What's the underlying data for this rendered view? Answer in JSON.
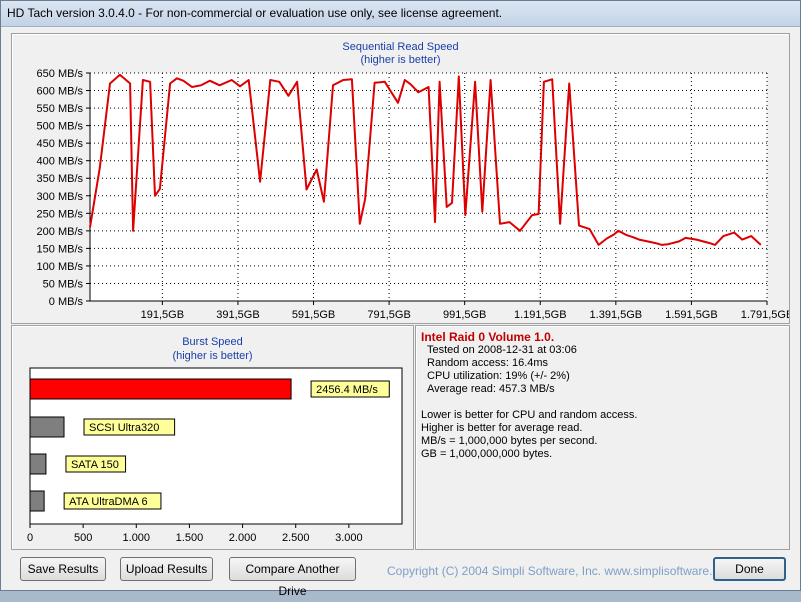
{
  "window": {
    "title": "HD Tach version 3.0.4.0  - For non-commercial or evaluation use only, see license agreement."
  },
  "sequential": {
    "title": "Sequential Read Speed",
    "subtitle": "(higher is better)"
  },
  "burst": {
    "title": "Burst Speed",
    "subtitle": "(higher is better)"
  },
  "info": {
    "heading": "Intel Raid 0 Volume 1.0.",
    "tested": "Tested on 2008-12-31 at 03:06",
    "random_access": "Random access: 16.4ms",
    "cpu": "CPU utilization: 19% (+/- 2%)",
    "avg_read": "Average read: 457.3 MB/s",
    "note1": "Lower is better for CPU and random access.",
    "note2": "Higher is better for average read.",
    "note3": "MB/s = 1,000,000 bytes per second.",
    "note4": "GB = 1,000,000,000 bytes."
  },
  "buttons": {
    "save": "Save Results",
    "upload": "Upload Results",
    "compare": "Compare Another Drive",
    "done": "Done"
  },
  "copyright": "Copyright (C) 2004 Simpli Software, Inc. www.simplisoftware.com",
  "chart_data": [
    {
      "type": "line",
      "title": "Sequential Read Speed",
      "subtitle": "(higher is better)",
      "color": "#dd0000",
      "ylim": [
        0,
        650
      ],
      "yticks": [
        0,
        50,
        100,
        150,
        200,
        250,
        300,
        350,
        400,
        450,
        500,
        550,
        600,
        650
      ],
      "ytick_labels": [
        "0 MB/s",
        "50 MB/s",
        "100 MB/s",
        "150 MB/s",
        "200 MB/s",
        "250 MB/s",
        "300 MB/s",
        "350 MB/s",
        "400 MB/s",
        "450 MB/s",
        "500 MB/s",
        "550 MB/s",
        "600 MB/s",
        "650 MB/s"
      ],
      "xlim": [
        0,
        1791.5
      ],
      "xticks": [
        191.5,
        391.5,
        591.5,
        791.5,
        991.5,
        1191.5,
        1391.5,
        1591.5,
        1791.5
      ],
      "xtick_labels": [
        "191,5GB",
        "391,5GB",
        "591,5GB",
        "791,5GB",
        "991,5GB",
        "1.191,5GB",
        "1.391,5GB",
        "1.591,5GB",
        "1.791,5GB"
      ],
      "grid": true,
      "x": [
        0,
        26,
        53,
        79,
        106,
        114,
        140,
        159,
        172,
        185,
        212,
        230,
        247,
        270,
        294,
        317,
        343,
        375,
        397,
        420,
        450,
        477,
        501,
        525,
        548,
        573,
        600,
        619,
        643,
        670,
        693,
        714,
        728,
        753,
        780,
        815,
        833,
        848,
        869,
        896,
        913,
        925,
        944,
        958,
        976,
        993,
        1019,
        1038,
        1060,
        1085,
        1110,
        1138,
        1170,
        1187,
        1201,
        1223,
        1244,
        1268,
        1294,
        1322,
        1346,
        1367,
        1387,
        1398,
        1420,
        1437,
        1453,
        1497,
        1513,
        1530,
        1559,
        1576,
        1605,
        1640,
        1654,
        1676,
        1705,
        1726,
        1750,
        1775
      ],
      "y": [
        210,
        380,
        620,
        645,
        620,
        200,
        630,
        625,
        300,
        320,
        620,
        635,
        628,
        610,
        615,
        628,
        615,
        630,
        612,
        630,
        340,
        630,
        625,
        585,
        625,
        318,
        375,
        283,
        615,
        630,
        632,
        220,
        290,
        622,
        625,
        565,
        630,
        618,
        595,
        610,
        225,
        625,
        268,
        280,
        640,
        245,
        625,
        255,
        630,
        220,
        225,
        200,
        245,
        248,
        625,
        632,
        220,
        620,
        215,
        205,
        160,
        178,
        190,
        200,
        188,
        182,
        175,
        165,
        160,
        162,
        170,
        180,
        175,
        165,
        160,
        185,
        195,
        175,
        185,
        160
      ]
    },
    {
      "type": "bar",
      "orientation": "horizontal",
      "title": "Burst Speed",
      "subtitle": "(higher is better)",
      "xlim": [
        0,
        3500
      ],
      "xticks": [
        0,
        500,
        1000,
        1500,
        2000,
        2500,
        3000
      ],
      "xtick_labels": [
        "0",
        "500",
        "1.000",
        "1.500",
        "2.000",
        "2.500",
        "3.000"
      ],
      "categories": [
        "2456.4 MB/s",
        "SCSI Ultra320",
        "SATA 150",
        "ATA UltraDMA 6"
      ],
      "values": [
        2456.4,
        320,
        150,
        133
      ],
      "colors": [
        "#ff0000",
        "#7f7f7f",
        "#7f7f7f",
        "#7f7f7f"
      ]
    }
  ]
}
